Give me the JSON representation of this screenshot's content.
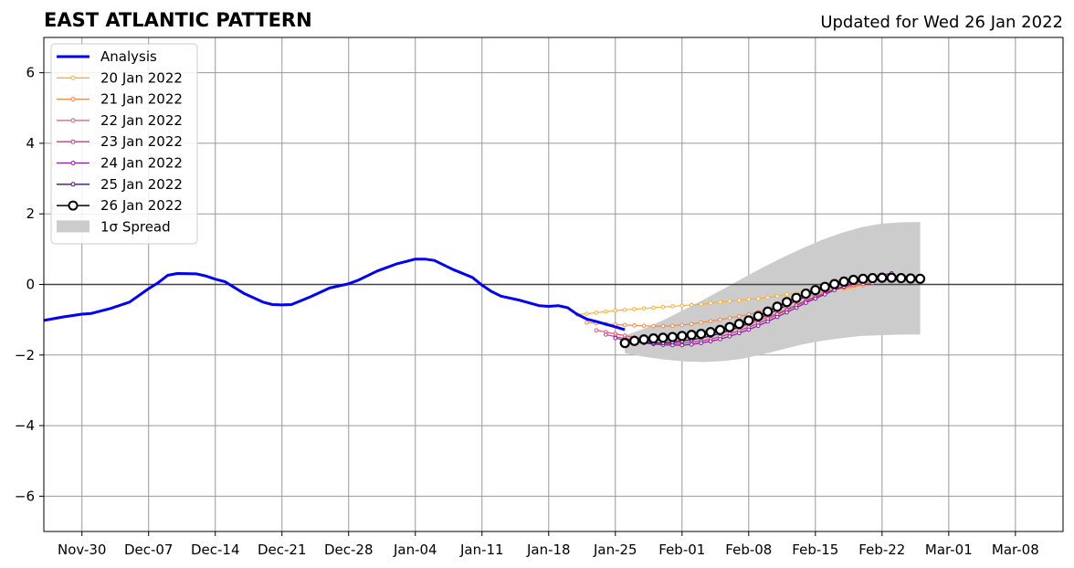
{
  "chart_data": {
    "type": "line",
    "title": "EAST ATLANTIC PATTERN",
    "subtitle": "Updated for Wed 26 Jan 2022",
    "xlabel": "",
    "ylabel": "",
    "x_range": [
      "2021-11-26",
      "2022-03-13"
    ],
    "ylim": [
      -7,
      7
    ],
    "yticks": [
      -6,
      -4,
      -2,
      0,
      2,
      4,
      6
    ],
    "ytick_labels": [
      "−6",
      "−4",
      "−2",
      "0",
      "2",
      "4",
      "6"
    ],
    "xticks": [
      "2021-11-30",
      "2021-12-07",
      "2021-12-14",
      "2021-12-21",
      "2021-12-28",
      "2022-01-04",
      "2022-01-11",
      "2022-01-18",
      "2022-01-25",
      "2022-02-01",
      "2022-02-08",
      "2022-02-15",
      "2022-02-22",
      "2022-03-01",
      "2022-03-08"
    ],
    "xtick_labels": [
      "Nov-30",
      "Dec-07",
      "Dec-14",
      "Dec-21",
      "Dec-28",
      "Jan-04",
      "Jan-11",
      "Jan-18",
      "Jan-25",
      "Feb-01",
      "Feb-08",
      "Feb-15",
      "Feb-22",
      "Mar-01",
      "Mar-08"
    ],
    "grid": true,
    "legend_position": "top-left",
    "analysis": {
      "name": "Analysis",
      "color": "#0000ee",
      "x": [
        "2021-11-26",
        "2021-11-28",
        "2021-11-30",
        "2021-12-01",
        "2021-12-03",
        "2021-12-05",
        "2021-12-07",
        "2021-12-08",
        "2021-12-09",
        "2021-12-10",
        "2021-12-12",
        "2021-12-13",
        "2021-12-14",
        "2021-12-15",
        "2021-12-17",
        "2021-12-19",
        "2021-12-20",
        "2021-12-21",
        "2021-12-22",
        "2021-12-24",
        "2021-12-26",
        "2021-12-28",
        "2021-12-29",
        "2021-12-31",
        "2022-01-02",
        "2022-01-03",
        "2022-01-04",
        "2022-01-05",
        "2022-01-06",
        "2022-01-08",
        "2022-01-10",
        "2022-01-11",
        "2022-01-12",
        "2022-01-13",
        "2022-01-15",
        "2022-01-17",
        "2022-01-18",
        "2022-01-19",
        "2022-01-20",
        "2022-01-21",
        "2022-01-22",
        "2022-01-23",
        "2022-01-25",
        "2022-01-26"
      ],
      "y": [
        -1.02,
        -0.92,
        -0.84,
        -0.82,
        -0.68,
        -0.5,
        -0.12,
        0.05,
        0.26,
        0.31,
        0.3,
        0.24,
        0.15,
        0.08,
        -0.25,
        -0.5,
        -0.57,
        -0.58,
        -0.57,
        -0.35,
        -0.1,
        0.02,
        0.12,
        0.38,
        0.58,
        0.65,
        0.72,
        0.72,
        0.68,
        0.42,
        0.2,
        -0.02,
        -0.2,
        -0.33,
        -0.45,
        -0.6,
        -0.62,
        -0.6,
        -0.66,
        -0.85,
        -0.98,
        -1.05,
        -1.2,
        -1.28
      ]
    },
    "series": [
      {
        "name": "20 Jan 2022",
        "color": "#f5b23a",
        "x_start": "2022-01-21",
        "y": [
          -0.85,
          -0.83,
          -0.8,
          -0.77,
          -0.74,
          -0.72,
          -0.7,
          -0.68,
          -0.66,
          -0.64,
          -0.62,
          -0.6,
          -0.58,
          -0.56,
          -0.53,
          -0.5,
          -0.47,
          -0.45,
          -0.42,
          -0.4,
          -0.37,
          -0.33,
          -0.28,
          -0.25,
          -0.22,
          -0.18,
          -0.16,
          -0.14,
          -0.12,
          -0.1
        ]
      },
      {
        "name": "21 Jan 2022",
        "color": "#f08a4b",
        "x_start": "2022-01-22",
        "y": [
          -1.08,
          -1.1,
          -1.12,
          -1.14,
          -1.15,
          -1.16,
          -1.17,
          -1.18,
          -1.18,
          -1.17,
          -1.15,
          -1.12,
          -1.08,
          -1.04,
          -1.0,
          -0.95,
          -0.9,
          -0.85,
          -0.78,
          -0.7,
          -0.62,
          -0.54,
          -0.45,
          -0.36,
          -0.28,
          -0.2,
          -0.14,
          -0.09,
          -0.05,
          -0.02
        ]
      },
      {
        "name": "22 Jan 2022",
        "color": "#df5a6c",
        "x_start": "2022-01-23",
        "y": [
          -1.3,
          -1.35,
          -1.4,
          -1.45,
          -1.5,
          -1.55,
          -1.58,
          -1.6,
          -1.6,
          -1.59,
          -1.56,
          -1.52,
          -1.46,
          -1.39,
          -1.31,
          -1.22,
          -1.12,
          -1.02,
          -0.92,
          -0.82,
          -0.7,
          -0.58,
          -0.45,
          -0.34,
          -0.24,
          -0.15,
          -0.08,
          -0.02,
          0.02,
          0.05
        ]
      },
      {
        "name": "23 Jan 2022",
        "color": "#c23b8e",
        "x_start": "2022-01-24",
        "y": [
          -1.42,
          -1.48,
          -1.53,
          -1.58,
          -1.62,
          -1.65,
          -1.67,
          -1.68,
          -1.67,
          -1.64,
          -1.6,
          -1.55,
          -1.48,
          -1.4,
          -1.31,
          -1.21,
          -1.1,
          -0.98,
          -0.85,
          -0.73,
          -0.6,
          -0.48,
          -0.36,
          -0.25,
          -0.14,
          -0.05,
          0.03,
          0.1,
          0.15,
          0.2
        ]
      },
      {
        "name": "24 Jan 2022",
        "color": "#8a17a5",
        "x_start": "2022-01-25",
        "y": [
          -1.52,
          -1.58,
          -1.62,
          -1.66,
          -1.69,
          -1.71,
          -1.72,
          -1.72,
          -1.7,
          -1.66,
          -1.61,
          -1.55,
          -1.47,
          -1.38,
          -1.28,
          -1.17,
          -1.05,
          -0.92,
          -0.79,
          -0.66,
          -0.52,
          -0.4,
          -0.28,
          -0.16,
          -0.06,
          0.04,
          0.12,
          0.2,
          0.26,
          0.32
        ]
      },
      {
        "name": "25 Jan 2022",
        "color": "#4a0b86",
        "x_start": "2022-01-26",
        "y": [
          -1.6,
          -1.63,
          -1.65,
          -1.66,
          -1.66,
          -1.64,
          -1.61,
          -1.57,
          -1.52,
          -1.46,
          -1.39,
          -1.3,
          -1.2,
          -1.09,
          -0.97,
          -0.85,
          -0.72,
          -0.59,
          -0.46,
          -0.33,
          -0.2,
          -0.08,
          0.02,
          0.1,
          0.16,
          0.2,
          0.22,
          0.22,
          0.2
        ]
      },
      {
        "name": "26 Jan 2022",
        "color": "#000000",
        "x_start": "2022-01-26",
        "y": [
          -1.66,
          -1.6,
          -1.56,
          -1.53,
          -1.51,
          -1.49,
          -1.46,
          -1.43,
          -1.4,
          -1.35,
          -1.29,
          -1.21,
          -1.12,
          -1.02,
          -0.9,
          -0.77,
          -0.63,
          -0.5,
          -0.38,
          -0.26,
          -0.16,
          -0.07,
          0.01,
          0.08,
          0.13,
          0.16,
          0.18,
          0.19,
          0.19,
          0.18,
          0.17,
          0.16
        ]
      }
    ],
    "spread": {
      "name": "1σ Spread",
      "color": "#cccccc",
      "x_start": "2022-01-26",
      "x_end": "2022-02-26",
      "upper": [
        -1.45,
        -1.25,
        -1.0,
        -0.72,
        -0.43,
        -0.13,
        0.18,
        0.48,
        0.76,
        1.02,
        1.26,
        1.46,
        1.62,
        1.72,
        1.76,
        1.77
      ],
      "lower": [
        -1.95,
        -2.05,
        -2.13,
        -2.18,
        -2.2,
        -2.17,
        -2.1,
        -1.98,
        -1.84,
        -1.7,
        -1.6,
        -1.52,
        -1.46,
        -1.44,
        -1.42,
        -1.42
      ]
    }
  }
}
